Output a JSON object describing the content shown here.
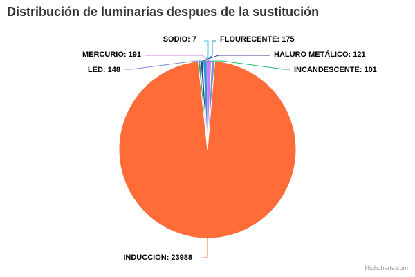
{
  "chart_data": {
    "type": "pie",
    "title": "Distribución de luminarias despues de la sustitución",
    "slices": [
      {
        "name": "INDUCCIÓN",
        "value": 23988,
        "color": "#ff6c37"
      },
      {
        "name": "LED",
        "value": 148,
        "color": "#7c8fd1"
      },
      {
        "name": "MERCURIO",
        "value": 191,
        "color": "#cc7dea"
      },
      {
        "name": "SODIO",
        "value": 7,
        "color": "#3fc4de"
      },
      {
        "name": "FLOURECENTE",
        "value": 175,
        "color": "#2a93dc"
      },
      {
        "name": "HALURO METÁLICO",
        "value": 121,
        "color": "#35409a"
      },
      {
        "name": "INCANDESCENTE",
        "value": 101,
        "color": "#1fb86d"
      }
    ],
    "label_format": "{name}: {value}"
  },
  "credits": "Highcharts.com"
}
